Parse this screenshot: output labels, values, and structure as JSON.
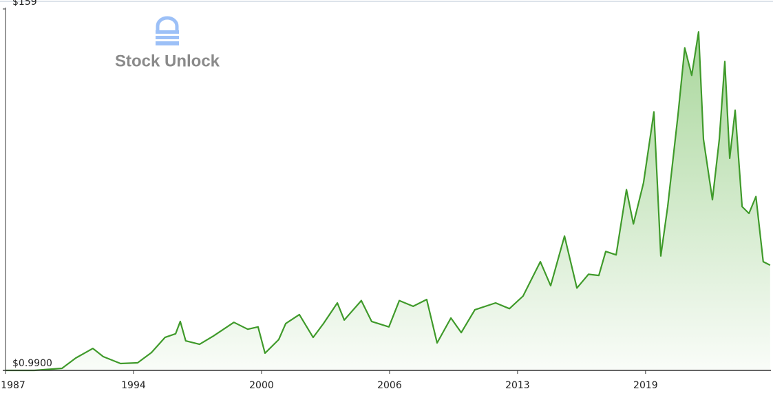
{
  "chart_data": {
    "type": "area",
    "watermark": "Stock Unlock",
    "color": "#3f9a2a",
    "x": [
      1987.3,
      1988.72,
      1990.08,
      1990.76,
      1991.6,
      1992.11,
      1992.96,
      1993.8,
      1994.48,
      1995.15,
      1995.67,
      1995.9,
      1996.17,
      1996.85,
      1997.53,
      1998.54,
      1999.22,
      1999.73,
      2000.07,
      2000.75,
      2001.09,
      2001.76,
      2002.44,
      2002.95,
      2003.63,
      2003.97,
      2004.81,
      2005.32,
      2006.17,
      2006.68,
      2007.36,
      2008.03,
      2008.54,
      2009.22,
      2009.73,
      2010.4,
      2011.42,
      2012.1,
      2012.77,
      2013.62,
      2014.13,
      2014.81,
      2015.42,
      2015.99,
      2016.5,
      2016.84,
      2017.35,
      2017.86,
      2018.2,
      2018.7,
      2019.21,
      2019.55,
      2019.89,
      2020.4,
      2020.73,
      2021.07,
      2021.41,
      2021.65,
      2022.09,
      2022.43,
      2022.7,
      2022.94,
      2023.21,
      2023.55,
      2023.89,
      2024.23,
      2024.59,
      2024.93
    ],
    "values": [
      1,
      1,
      1.9,
      6.4,
      10.6,
      7,
      4,
      4.3,
      8.8,
      15.4,
      17,
      22.4,
      13.9,
      12.4,
      16,
      22,
      19,
      20,
      8.5,
      14.5,
      21.5,
      25.4,
      15.4,
      21.5,
      30.5,
      23,
      31.5,
      22.4,
      20,
      31.5,
      29,
      32,
      13,
      23.9,
      17.5,
      27.5,
      30.5,
      28,
      33.5,
      48.5,
      38,
      59.7,
      37,
      43,
      42.5,
      53,
      51.5,
      80,
      65,
      83,
      114,
      51,
      72.6,
      113,
      142,
      130,
      149,
      102,
      75.6,
      102,
      136,
      93.7,
      114.7,
      72.6,
      69.6,
      77,
      48.5,
      47
    ],
    "xlim": [
      1987.3,
      2024.97
    ],
    "xticks": [
      {
        "value": 1987.3,
        "label": "1987"
      },
      {
        "value": 1993.6,
        "label": "1994"
      },
      {
        "value": 1999.9,
        "label": "2000"
      },
      {
        "value": 2006.2,
        "label": "2006"
      },
      {
        "value": 2012.5,
        "label": "2013"
      },
      {
        "value": 2018.8,
        "label": "2019"
      }
    ],
    "ylim": [
      0.99,
      159
    ],
    "yticks": [
      {
        "value": 0.99,
        "label": "$0.9900"
      },
      {
        "value": 159,
        "label": "$159"
      }
    ]
  }
}
